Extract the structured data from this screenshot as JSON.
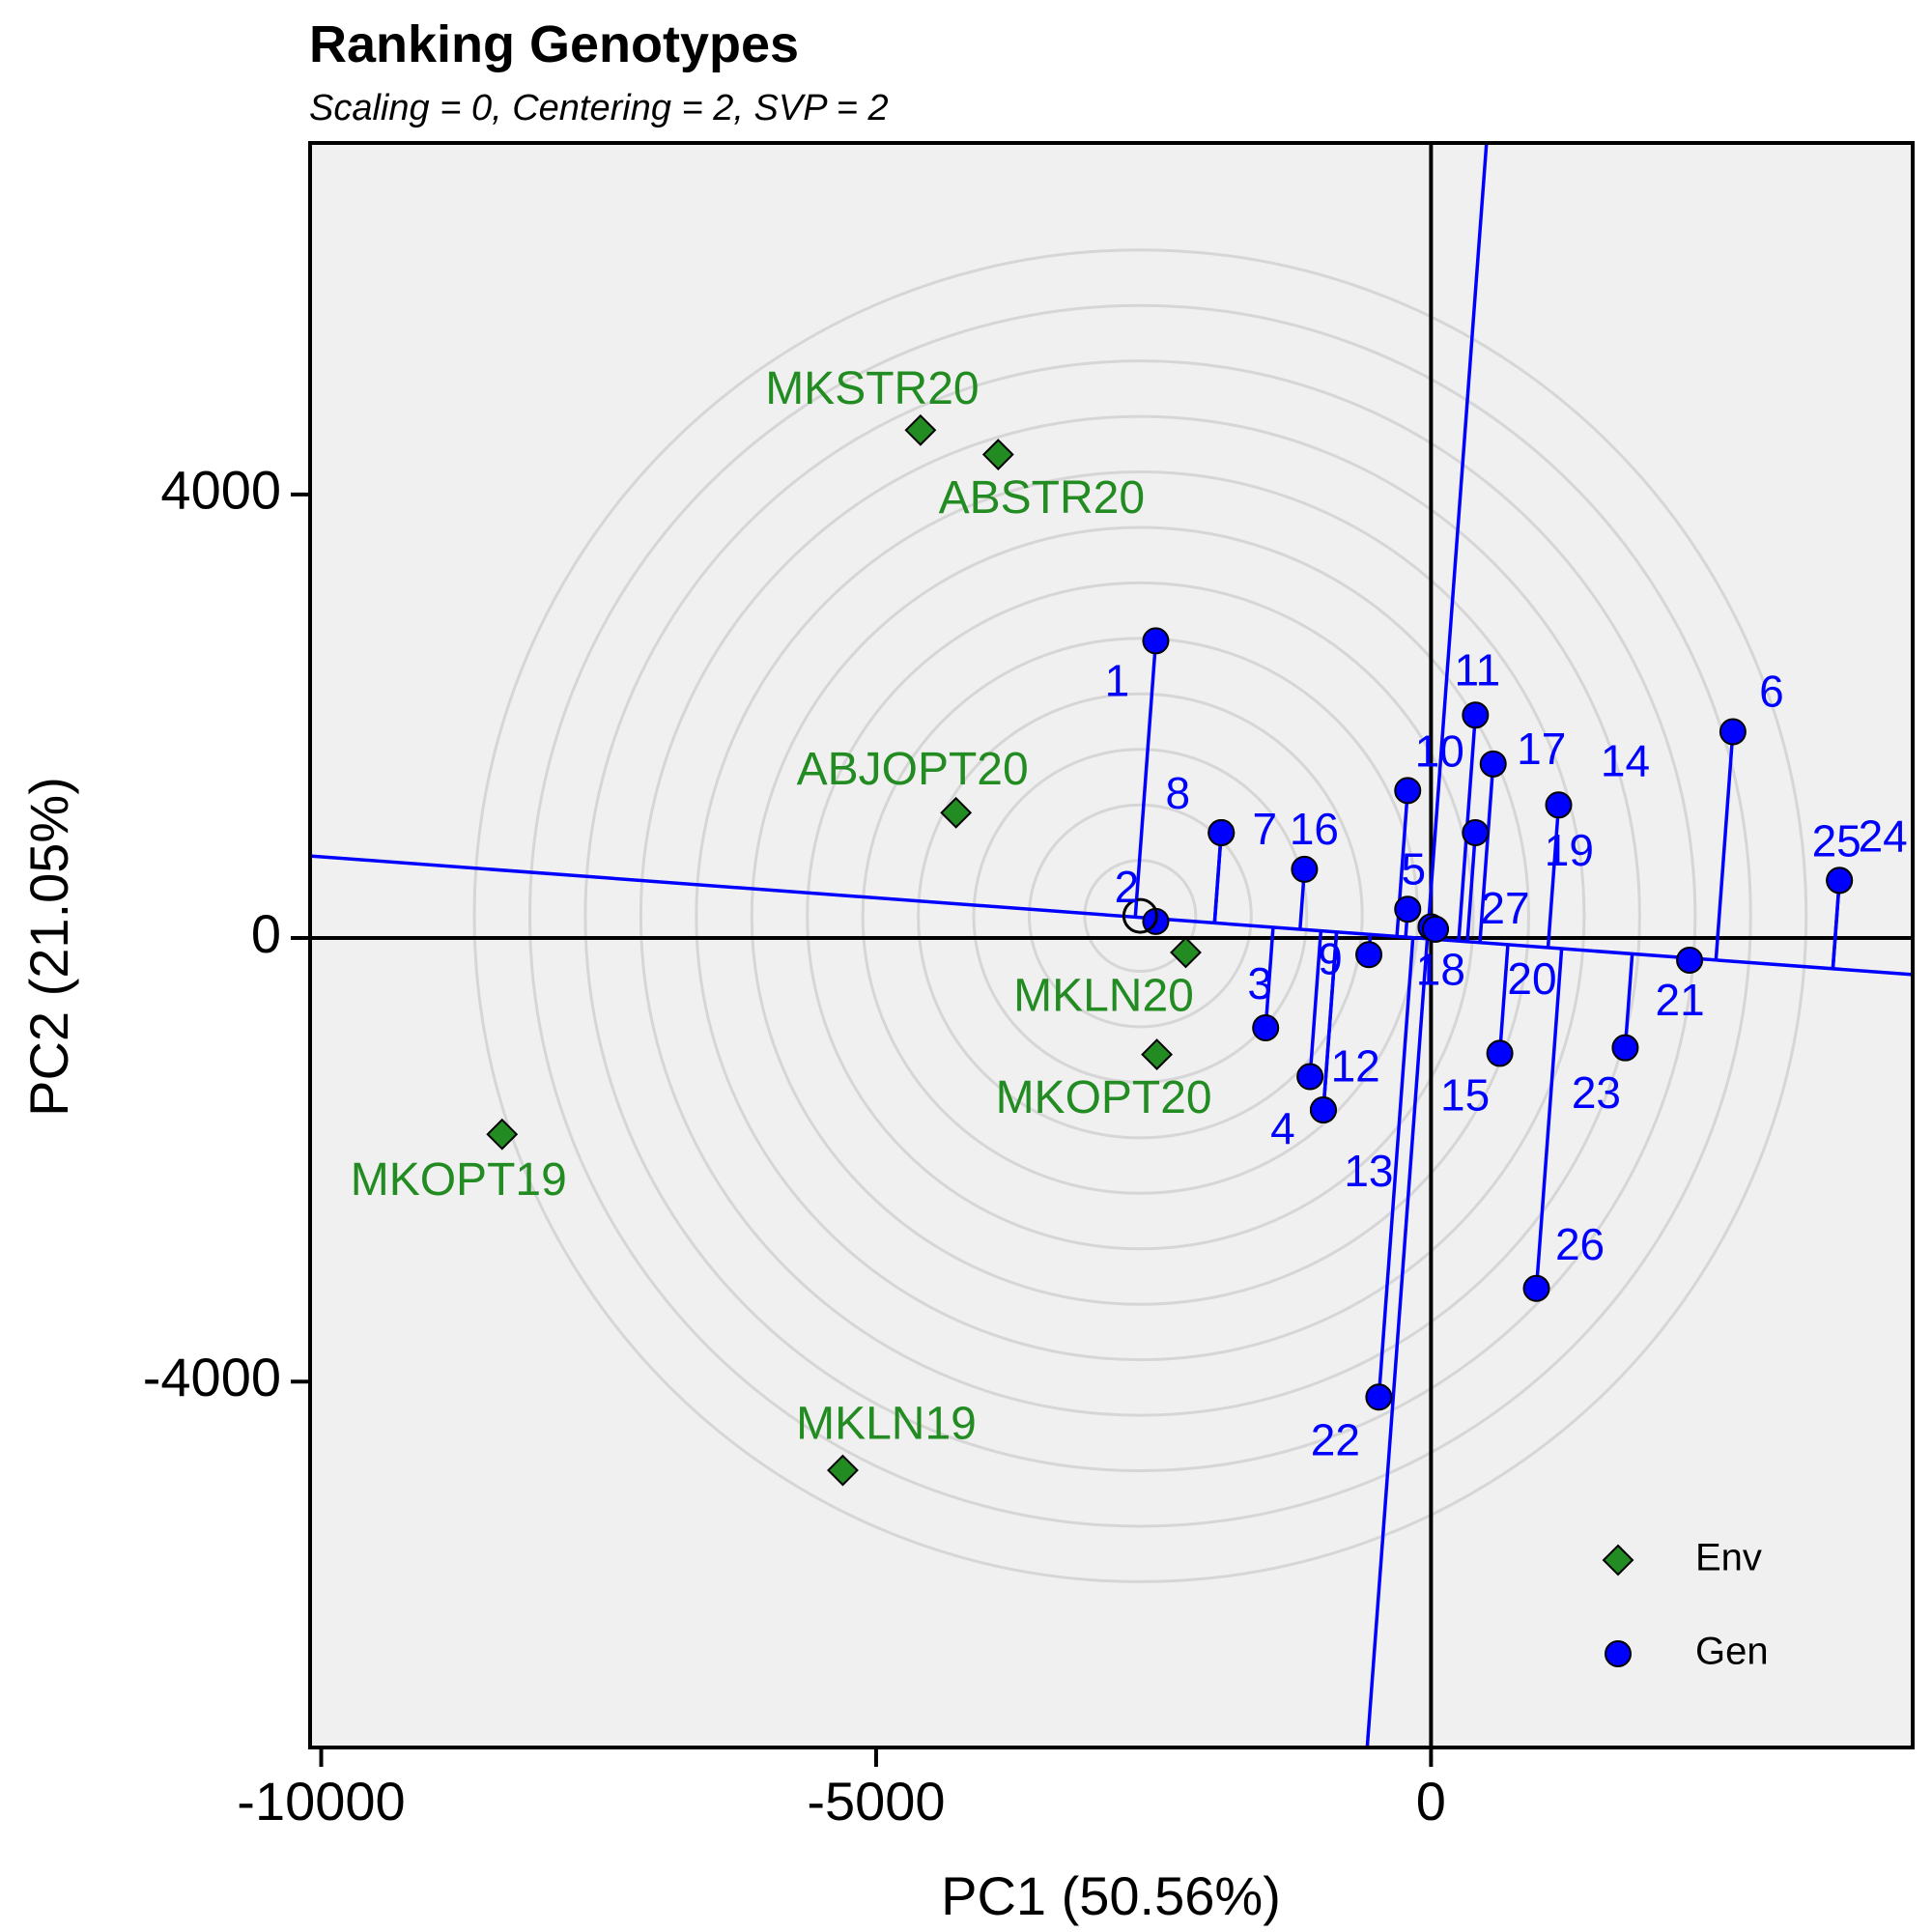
{
  "chart_data": {
    "type": "scatter",
    "title": "Ranking Genotypes",
    "subtitle": "Scaling = 0, Centering = 2, SVP = 2",
    "xlabel": "PC1 (50.56%)",
    "ylabel": "PC2 (21.05%)",
    "xlim": [
      -10100,
      4340
    ],
    "ylim": [
      -7300,
      7170
    ],
    "xticks": [
      -10000,
      -5000,
      0
    ],
    "xtick_labels": [
      "-10000",
      "-5000",
      "0"
    ],
    "yticks": [
      4000,
      0,
      -4000
    ],
    "ytick_labels": [
      "4000",
      "0",
      "-4000"
    ],
    "grid": false,
    "background": "#f0f0f0",
    "concentric_circles": {
      "center": [
        -2620,
        200
      ],
      "radii": [
        500,
        1000,
        1500,
        2000,
        2500,
        3000,
        3500,
        4000,
        4500,
        5000,
        5500,
        6000
      ]
    },
    "reference_lines": {
      "axis1_through": [
        [
          -10100,
          740
        ],
        [
          4340,
          -330
        ]
      ],
      "axis2_through": [
        [
          500,
          7170
        ],
        [
          -575,
          -7300
        ]
      ]
    },
    "series": [
      {
        "name": "Env",
        "marker": "diamond",
        "color": "#228B22",
        "points": [
          {
            "label": "MKSTR20",
            "x": -4600,
            "y": 4580
          },
          {
            "label": "ABSTR20",
            "x": -3900,
            "y": 4360
          },
          {
            "label": "ABJOPT20",
            "x": -4280,
            "y": 1130
          },
          {
            "label": "MKLN20",
            "x": -2210,
            "y": -130
          },
          {
            "label": "MKOPT20",
            "x": -2470,
            "y": -1050
          },
          {
            "label": "MKOPT19",
            "x": -8370,
            "y": -1770
          },
          {
            "label": "MKLN19",
            "x": -5300,
            "y": -4800
          }
        ]
      },
      {
        "name": "Gen",
        "marker": "circle",
        "color": "#0000FF",
        "points": [
          {
            "label": "1",
            "x": -2480,
            "y": 2680
          },
          {
            "label": "2",
            "x": -2480,
            "y": 150
          },
          {
            "label": "3",
            "x": -1490,
            "y": -810
          },
          {
            "label": "4",
            "x": -970,
            "y": -1550
          },
          {
            "label": "5",
            "x": -210,
            "y": 260
          },
          {
            "label": "6",
            "x": 2720,
            "y": 1860
          },
          {
            "label": "7",
            "x": -1890,
            "y": 950
          },
          {
            "label": "8",
            "x": -1890,
            "y": 950
          },
          {
            "label": "9",
            "x": -560,
            "y": -150
          },
          {
            "label": "10",
            "x": -210,
            "y": 1330
          },
          {
            "label": "11",
            "x": 400,
            "y": 2010
          },
          {
            "label": "12",
            "x": -1090,
            "y": -1250
          },
          {
            "label": "13",
            "x": -970,
            "y": -1550
          },
          {
            "label": "14",
            "x": 1150,
            "y": 1200
          },
          {
            "label": "15",
            "x": 620,
            "y": -1040
          },
          {
            "label": "16",
            "x": -1140,
            "y": 620
          },
          {
            "label": "17",
            "x": 560,
            "y": 1570
          },
          {
            "label": "18",
            "x": 0,
            "y": 100
          },
          {
            "label": "19",
            "x": 400,
            "y": 950
          },
          {
            "label": "20",
            "x": 40,
            "y": 80
          },
          {
            "label": "21",
            "x": 2330,
            "y": -200
          },
          {
            "label": "22",
            "x": -470,
            "y": -4140
          },
          {
            "label": "23",
            "x": 1750,
            "y": -990
          },
          {
            "label": "24",
            "x": 3680,
            "y": 520
          },
          {
            "label": "25",
            "x": 3680,
            "y": 520
          },
          {
            "label": "26",
            "x": 950,
            "y": -3160
          },
          {
            "label": "27",
            "x": 40,
            "y": 80
          }
        ]
      }
    ],
    "legend": {
      "position": "bottom-right",
      "entries": [
        {
          "label": "Env",
          "marker": "diamond",
          "color": "#228B22"
        },
        {
          "label": "Gen",
          "marker": "circle",
          "color": "#0000FF"
        }
      ]
    }
  }
}
